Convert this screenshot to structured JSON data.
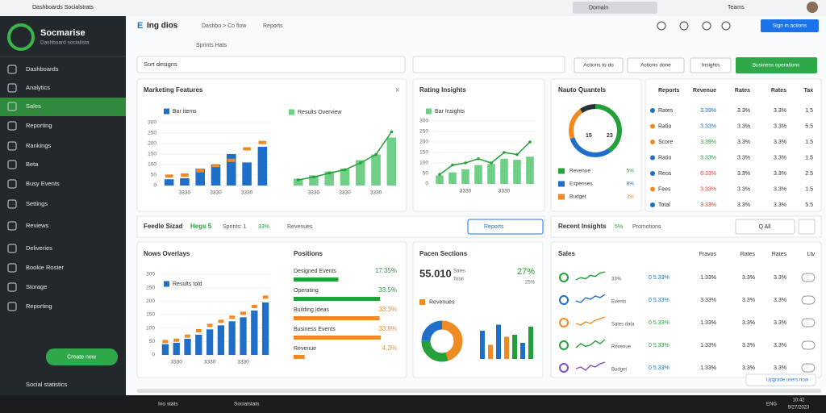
{
  "browser": {
    "tab": "Dashboards Socialstrats",
    "address": "Domain",
    "profile": "Teams"
  },
  "sidebar": {
    "brand": "Socmarise",
    "brand_sub": "Dashboard socialista",
    "nav": [
      "Dashboards",
      "Analytics",
      "Sales",
      "Reporting",
      "Rankings",
      "Beta",
      "Busy Events",
      "Settings",
      "Reviews",
      "Deliveries",
      "Bookie Roster",
      "Storage",
      "Reporting"
    ],
    "cta": "Create new",
    "user": "Social statistics"
  },
  "header": {
    "logo": "E",
    "title": "Ing dios",
    "crumbs": [
      "Dashbo > Co flow",
      "Reports"
    ],
    "sub": "Sprints Hats",
    "button": "Sign in actions"
  },
  "filter": {
    "select": "Sort designs",
    "buttons": [
      "Actions to do",
      "Actions done",
      "Insights"
    ],
    "primary": "Business operations"
  },
  "marketing": {
    "title": "Marketing Features",
    "bar_chart": {
      "type": "bar",
      "categories": [
        null,
        "3330",
        null,
        "3330",
        null,
        "3330",
        null
      ],
      "ylim": [
        0,
        300
      ],
      "yticks": [
        0,
        50,
        100,
        150,
        200,
        250,
        300
      ],
      "series": [
        {
          "name": "Bar items",
          "type": "bar",
          "color": "#1f6fc9",
          "values": [
            30,
            35,
            80,
            100,
            150,
            110,
            185
          ]
        },
        {
          "type": "marker",
          "color": "#f08a24",
          "values": [
            45,
            50,
            70,
            95,
            120,
            175,
            205
          ]
        }
      ]
    },
    "line_chart": {
      "type": "bar",
      "categories": [
        null,
        "3330",
        null,
        "3330",
        null,
        "3330",
        null
      ],
      "ylim": [
        0,
        100
      ],
      "series": [
        {
          "name": "Results Overview",
          "type": "bar",
          "color": "#6fcf87",
          "values": [
            12,
            18,
            25,
            30,
            45,
            55,
            85
          ]
        },
        {
          "type": "line",
          "color": "#23a03a",
          "values": [
            10,
            15,
            22,
            28,
            40,
            55,
            95
          ]
        }
      ]
    }
  },
  "rating": {
    "title": "Rating Insights",
    "chart": {
      "type": "bar",
      "categories": [
        null,
        null,
        "3330",
        null,
        null,
        "3330",
        null,
        null
      ],
      "ylim": [
        0,
        300
      ],
      "yticks": [
        0,
        50,
        100,
        150,
        200,
        250,
        300
      ],
      "series": [
        {
          "name": "Bar Insights",
          "type": "bar",
          "color": "#6fcf87",
          "values": [
            40,
            55,
            70,
            90,
            95,
            120,
            115,
            130
          ]
        },
        {
          "type": "line",
          "color": "#23a03a",
          "values": [
            45,
            90,
            100,
            120,
            100,
            150,
            140,
            200
          ]
        }
      ]
    }
  },
  "quantels": {
    "title": "Nauto Quantels",
    "center": [
      "15",
      "23"
    ],
    "donut": {
      "type": "pie",
      "values": [
        40,
        30,
        20,
        10
      ],
      "colors": [
        "#23a03a",
        "#1f6fc9",
        "#f08a24",
        "#2b2f36"
      ]
    },
    "legend": [
      {
        "label": "Revenue",
        "value": "5%",
        "color": "#23a03a"
      },
      {
        "label": "Expenses",
        "value": "8%",
        "color": "#1f6fc9"
      },
      {
        "label": "Budget",
        "value": "3%",
        "color": "#f08a24"
      }
    ]
  },
  "table": {
    "columns": [
      "Reports",
      "Revenue",
      "Rates",
      "Rates",
      "Tax"
    ],
    "rows": [
      {
        "cells": [
          "Rates",
          "3.39%",
          "3.3%",
          "3.3%",
          "1.5"
        ],
        "color": "#1f6fc9",
        "icon": "#1f6fc9"
      },
      {
        "cells": [
          "Ratio",
          "3.33%",
          "3.3%",
          "3.3%",
          "5.5"
        ],
        "color": "#1f6fc9",
        "icon": "#f08a24"
      },
      {
        "cells": [
          "Score",
          "3.39%",
          "3.3%",
          "3.3%",
          "1.5"
        ],
        "color": "#23a03a",
        "icon": "#f08a24"
      },
      {
        "cells": [
          "Ratio",
          "3.33%",
          "3.3%",
          "3.3%",
          "1.5"
        ],
        "color": "#23a03a",
        "icon": "#1f6fc9"
      },
      {
        "cells": [
          "Reos",
          "6.33%",
          "3.3%",
          "3.3%",
          "2.5"
        ],
        "color": "#e53935",
        "icon": "#1f6fc9"
      },
      {
        "cells": [
          "Fees",
          "3.33%",
          "3.3%",
          "3.3%",
          "1.5"
        ],
        "color": "#e53935",
        "icon": "#f08a24"
      },
      {
        "cells": [
          "Total",
          "3.33%",
          "3.3%",
          "3.3%",
          "5.5"
        ],
        "color": "#e53935",
        "icon": "#1f6fc9"
      }
    ]
  },
  "section2": {
    "title": "Feedle Sizad",
    "badge": "Hegs 5",
    "sprints": "Sprints: 1",
    "pct": "33%",
    "revenues": "Revenues",
    "button": "Reports",
    "right_title": "Recent Insights",
    "right_pct": "5%",
    "right_sub": "Promotions",
    "filter": "Q All"
  },
  "overlays": {
    "title": "Nows Overlays",
    "chart": {
      "type": "bar",
      "categories": [
        null,
        "3330",
        null,
        null,
        "3330",
        null,
        null,
        "3330",
        null,
        null
      ],
      "ylim": [
        0,
        300
      ],
      "yticks": [
        0,
        50,
        100,
        150,
        200,
        250,
        300
      ],
      "series": [
        {
          "name": "Results told",
          "type": "bar",
          "color": "#1f6fc9",
          "values": [
            40,
            45,
            60,
            75,
            95,
            110,
            125,
            140,
            165,
            195
          ]
        },
        {
          "type": "marker",
          "color": "#f08a24",
          "values": [
            50,
            55,
            70,
            90,
            110,
            125,
            140,
            155,
            180,
            215
          ]
        }
      ]
    }
  },
  "positions": {
    "title": "Positions",
    "xlim": [
      0,
      40
    ],
    "items": [
      {
        "label": "Designed Events",
        "value": 17.35,
        "value_label": "17.35%",
        "color": "#23a03a"
      },
      {
        "label": "Operating",
        "value": 33.5,
        "value_label": "33.5%",
        "color": "#23a03a"
      },
      {
        "label": "Building Ideas",
        "value": 33.3,
        "value_label": "33.3%",
        "color": "#f08a24"
      },
      {
        "label": "Business Events",
        "value": 33.8,
        "value_label": "33.8%",
        "color": "#f08a24"
      },
      {
        "label": "Revenue",
        "value": 4.3,
        "value_label": "4.3%",
        "color": "#f08a24"
      }
    ]
  },
  "sections": {
    "title": "Pacen Sections",
    "big": "55.010",
    "big_sub": [
      "Sales",
      "Total"
    ],
    "pct": "27%",
    "pct_sub": "25%",
    "legend": "Revenues",
    "donut": {
      "type": "pie",
      "values": [
        45,
        30,
        25
      ],
      "colors": [
        "#f08a24",
        "#23a03a",
        "#1f6fc9"
      ]
    },
    "bars": {
      "type": "bar",
      "ylim": [
        0,
        100
      ],
      "values": [
        70,
        35,
        85,
        55,
        60,
        40,
        80
      ],
      "colors": [
        "#1f6fc9",
        "#f08a24",
        "#1f6fc9",
        "#f08a24",
        "#23a03a",
        "#1f6fc9",
        "#23a03a"
      ]
    }
  },
  "sales": {
    "title": "Sales",
    "columns": [
      "Fravos",
      "Rates",
      "Rates",
      "Ltv"
    ],
    "rows": [
      {
        "icon": "#23a03a",
        "spark": [
          3,
          5,
          4,
          7,
          6,
          9,
          10
        ],
        "sub": "33%",
        "change": "0 5.33%",
        "cells": [
          "1.33%",
          "3.3%",
          "3.3%"
        ],
        "color": "#1f6fc9"
      },
      {
        "icon": "#1f6fc9",
        "spark": [
          4,
          3,
          6,
          5,
          7,
          6,
          8
        ],
        "sub": "Events",
        "change": "0 5.33%",
        "cells": [
          "3.33%",
          "3.3%",
          "3.3%"
        ],
        "color": "#1f6fc9"
      },
      {
        "icon": "#f08a24",
        "spark": [
          5,
          4,
          6,
          5,
          7,
          8,
          9
        ],
        "sub": "Sales data",
        "change": "0 5.33%",
        "cells": [
          "1.33%",
          "3.3%",
          "3.3%"
        ],
        "color": "#23a03a"
      },
      {
        "icon": "#23a03a",
        "spark": [
          3,
          6,
          4,
          5,
          8,
          6,
          9
        ],
        "sub": "Revenue",
        "change": "0 5.33%",
        "cells": [
          "1.33%",
          "3.3%",
          "3.3%"
        ],
        "color": "#23a03a"
      },
      {
        "icon": "#7b4fc9",
        "spark": [
          4,
          5,
          3,
          6,
          5,
          7,
          8
        ],
        "sub": "Budget",
        "change": "0 5.33%",
        "cells": [
          "1.33%",
          "3.3%",
          "3.3%"
        ],
        "color": "#1f6fc9"
      }
    ],
    "badge": "Upgrade users now"
  },
  "taskbar": {
    "apps": [
      "Ino stats",
      "Socialstats"
    ],
    "lang": "ENG",
    "time": "10:42",
    "date": "9/27/2023"
  }
}
